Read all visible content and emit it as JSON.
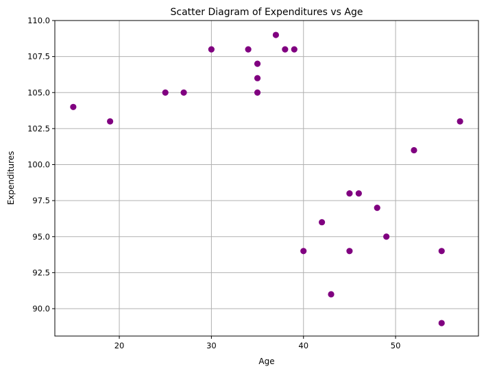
{
  "chart_data": {
    "type": "scatter",
    "title": "Scatter Diagram of Expenditures vs Age",
    "xlabel": "Age",
    "ylabel": "Expenditures",
    "xlim": [
      13,
      59
    ],
    "ylim": [
      88.1,
      110.0
    ],
    "xticks": [
      20,
      30,
      40,
      50
    ],
    "xtick_labels": [
      "20",
      "30",
      "40",
      "50"
    ],
    "yticks": [
      90.0,
      92.5,
      95.0,
      97.5,
      100.0,
      102.5,
      105.0,
      107.5,
      110.0
    ],
    "ytick_labels": [
      "90.0",
      "92.5",
      "95.0",
      "97.5",
      "100.0",
      "102.5",
      "105.0",
      "107.5",
      "110.0"
    ],
    "grid": true,
    "color": "#800080",
    "points": [
      {
        "x": 15,
        "y": 104
      },
      {
        "x": 19,
        "y": 103
      },
      {
        "x": 25,
        "y": 105
      },
      {
        "x": 27,
        "y": 105
      },
      {
        "x": 30,
        "y": 108
      },
      {
        "x": 34,
        "y": 108
      },
      {
        "x": 35,
        "y": 107
      },
      {
        "x": 35,
        "y": 106
      },
      {
        "x": 35,
        "y": 105
      },
      {
        "x": 37,
        "y": 109
      },
      {
        "x": 38,
        "y": 108
      },
      {
        "x": 39,
        "y": 108
      },
      {
        "x": 40,
        "y": 94
      },
      {
        "x": 42,
        "y": 96
      },
      {
        "x": 43,
        "y": 91
      },
      {
        "x": 45,
        "y": 98
      },
      {
        "x": 45,
        "y": 94
      },
      {
        "x": 46,
        "y": 98
      },
      {
        "x": 48,
        "y": 97
      },
      {
        "x": 49,
        "y": 95
      },
      {
        "x": 52,
        "y": 101
      },
      {
        "x": 55,
        "y": 94
      },
      {
        "x": 55,
        "y": 89
      },
      {
        "x": 57,
        "y": 103
      }
    ]
  }
}
